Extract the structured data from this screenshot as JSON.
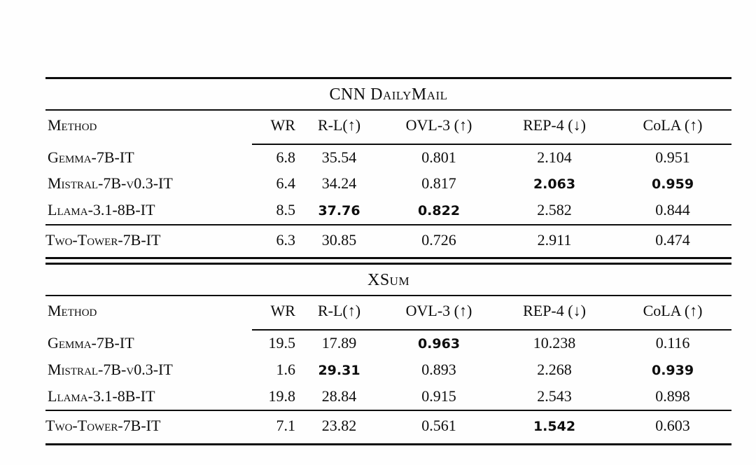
{
  "page": {
    "background": "#fefefe",
    "text_color": "#0d0d0d",
    "rule_color": "#0d0d0d",
    "bold_note": "best values per metric are shown in bold sans-serif"
  },
  "tables": [
    {
      "title": "CNN DailyMail",
      "columns": [
        {
          "label": "Method"
        },
        {
          "label": "WR"
        },
        {
          "label": "R-L(↑)"
        },
        {
          "label": "OVL-3 (↑)"
        },
        {
          "label": "REP-4 (↓)"
        },
        {
          "label": "CoLA (↑)"
        }
      ],
      "rows": [
        {
          "cells": [
            {
              "text": "Gemma-7B-IT"
            },
            {
              "text": "6.8"
            },
            {
              "text": "35.54"
            },
            {
              "text": "0.801"
            },
            {
              "text": "2.104"
            },
            {
              "text": "0.951"
            }
          ]
        },
        {
          "cells": [
            {
              "text": "Mistral-7B-v0.3-IT"
            },
            {
              "text": "6.4"
            },
            {
              "text": "34.24"
            },
            {
              "text": "0.817"
            },
            {
              "text": "2.063",
              "bold": true
            },
            {
              "text": "0.959",
              "bold": true
            }
          ]
        },
        {
          "cells": [
            {
              "text": "Llama-3.1-8B-IT"
            },
            {
              "text": "8.5"
            },
            {
              "text": "37.76",
              "bold": true
            },
            {
              "text": "0.822",
              "bold": true
            },
            {
              "text": "2.582"
            },
            {
              "text": "0.844"
            }
          ]
        },
        {
          "cells": [
            {
              "text": "Two-Tower-7B-IT"
            },
            {
              "text": "6.3"
            },
            {
              "text": "30.85"
            },
            {
              "text": "0.726"
            },
            {
              "text": "2.911"
            },
            {
              "text": "0.474"
            }
          ]
        }
      ]
    },
    {
      "title": "XSum",
      "columns": [
        {
          "label": "Method"
        },
        {
          "label": "WR"
        },
        {
          "label": "R-L(↑)"
        },
        {
          "label": "OVL-3 (↑)"
        },
        {
          "label": "REP-4 (↓)"
        },
        {
          "label": "CoLA (↑)"
        }
      ],
      "rows": [
        {
          "cells": [
            {
              "text": "Gemma-7B-IT"
            },
            {
              "text": "19.5"
            },
            {
              "text": "17.89"
            },
            {
              "text": "0.963",
              "bold": true
            },
            {
              "text": "10.238"
            },
            {
              "text": "0.116"
            }
          ]
        },
        {
          "cells": [
            {
              "text": "Mistral-7B-v0.3-IT"
            },
            {
              "text": "1.6"
            },
            {
              "text": "29.31",
              "bold": true
            },
            {
              "text": "0.893"
            },
            {
              "text": "2.268"
            },
            {
              "text": "0.939",
              "bold": true
            }
          ]
        },
        {
          "cells": [
            {
              "text": "Llama-3.1-8B-IT"
            },
            {
              "text": "19.8"
            },
            {
              "text": "28.84"
            },
            {
              "text": "0.915"
            },
            {
              "text": "2.543"
            },
            {
              "text": "0.898"
            }
          ]
        },
        {
          "cells": [
            {
              "text": "Two-Tower-7B-IT"
            },
            {
              "text": "7.1"
            },
            {
              "text": "23.82"
            },
            {
              "text": "0.561"
            },
            {
              "text": "1.542",
              "bold": true
            },
            {
              "text": "0.603"
            }
          ]
        }
      ]
    }
  ]
}
